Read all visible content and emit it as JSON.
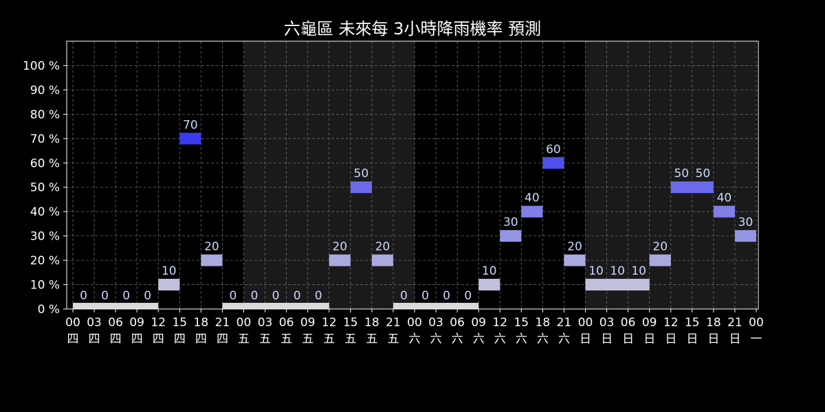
{
  "chart_data": {
    "type": "bar",
    "title": "六龜區 未來每 3小時降雨機率 預測",
    "xlabel": "",
    "ylabel": "",
    "ylim": [
      0,
      110
    ],
    "y_ticks": [
      "0 %",
      "10 %",
      "20 %",
      "30 %",
      "40 %",
      "50 %",
      "60 %",
      "70 %",
      "80 %",
      "90 %",
      "100 %"
    ],
    "y_tick_values": [
      0,
      10,
      20,
      30,
      40,
      50,
      60,
      70,
      80,
      90,
      100
    ],
    "grid": true,
    "x_tick_hours": [
      "00",
      "03",
      "06",
      "09",
      "12",
      "15",
      "18",
      "21",
      "00",
      "03",
      "06",
      "09",
      "12",
      "15",
      "18",
      "21",
      "00",
      "03",
      "06",
      "09",
      "12",
      "15",
      "18",
      "21",
      "00",
      "03",
      "06",
      "09",
      "12",
      "15",
      "18",
      "21",
      "00"
    ],
    "x_tick_days": [
      "四",
      "四",
      "四",
      "四",
      "四",
      "四",
      "四",
      "四",
      "五",
      "五",
      "五",
      "五",
      "五",
      "五",
      "五",
      "五",
      "六",
      "六",
      "六",
      "六",
      "六",
      "六",
      "六",
      "六",
      "日",
      "日",
      "日",
      "日",
      "日",
      "日",
      "日",
      "日",
      "一"
    ],
    "values": [
      0,
      0,
      0,
      0,
      10,
      70,
      null,
      20,
      0,
      0,
      0,
      0,
      0,
      20,
      50,
      null,
      20,
      0,
      0,
      0,
      0,
      10,
      30,
      40,
      60,
      20,
      10,
      10,
      10,
      20,
      50,
      50,
      40,
      30
    ],
    "bars": [
      {
        "start": 0,
        "end": 4,
        "value": 0,
        "label": "0"
      },
      {
        "start": 4,
        "end": 5,
        "value": 10,
        "label": "10"
      },
      {
        "start": 5,
        "end": 6,
        "value": 70,
        "label": "70"
      },
      {
        "start": 6,
        "end": 7,
        "value": 20,
        "label": "20"
      },
      {
        "start": 7,
        "end": 12,
        "value": 0,
        "label": "0"
      },
      {
        "start": 12,
        "end": 13,
        "value": 20,
        "label": "20"
      },
      {
        "start": 13,
        "end": 14,
        "value": 50,
        "label": "50"
      },
      {
        "start": 14,
        "end": 15,
        "value": 20,
        "label": "20"
      },
      {
        "start": 15,
        "end": 19,
        "value": 0,
        "label": "0"
      },
      {
        "start": 19,
        "end": 20,
        "value": 10,
        "label": "10"
      },
      {
        "start": 20,
        "end": 21,
        "value": 30,
        "label": "30"
      },
      {
        "start": 21,
        "end": 22,
        "value": 40,
        "label": "40"
      },
      {
        "start": 22,
        "end": 23,
        "value": 60,
        "label": "60"
      },
      {
        "start": 23,
        "end": 24,
        "value": 20,
        "label": "20"
      },
      {
        "start": 24,
        "end": 27,
        "value": 10,
        "label": "10"
      },
      {
        "start": 27,
        "end": 28,
        "value": 20,
        "label": "20"
      },
      {
        "start": 28,
        "end": 30,
        "value": 50,
        "label": "50"
      },
      {
        "start": 30,
        "end": 31,
        "value": 40,
        "label": "40"
      },
      {
        "start": 31,
        "end": 32,
        "value": 30,
        "label": "30"
      }
    ],
    "point_labels": [
      {
        "pos": 0.5,
        "value": 0,
        "label": "0"
      },
      {
        "pos": 1.5,
        "value": 0,
        "label": "0"
      },
      {
        "pos": 2.5,
        "value": 0,
        "label": "0"
      },
      {
        "pos": 3.5,
        "value": 0,
        "label": "0"
      },
      {
        "pos": 4.5,
        "value": 10,
        "label": "10"
      },
      {
        "pos": 5.5,
        "value": 70,
        "label": "70"
      },
      {
        "pos": 6.5,
        "value": 20,
        "label": "20"
      },
      {
        "pos": 7.5,
        "value": 0,
        "label": "0"
      },
      {
        "pos": 8.5,
        "value": 0,
        "label": "0"
      },
      {
        "pos": 9.5,
        "value": 0,
        "label": "0"
      },
      {
        "pos": 10.5,
        "value": 0,
        "label": "0"
      },
      {
        "pos": 11.5,
        "value": 0,
        "label": "0"
      },
      {
        "pos": 12.5,
        "value": 20,
        "label": "20"
      },
      {
        "pos": 13.5,
        "value": 50,
        "label": "50"
      },
      {
        "pos": 14.5,
        "value": 20,
        "label": "20"
      },
      {
        "pos": 15.5,
        "value": 0,
        "label": "0"
      },
      {
        "pos": 16.5,
        "value": 0,
        "label": "0"
      },
      {
        "pos": 17.5,
        "value": 0,
        "label": "0"
      },
      {
        "pos": 18.5,
        "value": 0,
        "label": "0"
      },
      {
        "pos": 19.5,
        "value": 10,
        "label": "10"
      },
      {
        "pos": 20.5,
        "value": 30,
        "label": "30"
      },
      {
        "pos": 21.5,
        "value": 40,
        "label": "40"
      },
      {
        "pos": 22.5,
        "value": 60,
        "label": "60"
      },
      {
        "pos": 23.5,
        "value": 20,
        "label": "20"
      },
      {
        "pos": 24.5,
        "value": 10,
        "label": "10"
      },
      {
        "pos": 25.5,
        "value": 10,
        "label": "10"
      },
      {
        "pos": 26.5,
        "value": 10,
        "label": "10"
      },
      {
        "pos": 27.5,
        "value": 20,
        "label": "20"
      },
      {
        "pos": 28.5,
        "value": 50,
        "label": "50"
      },
      {
        "pos": 29.5,
        "value": 50,
        "label": "50"
      },
      {
        "pos": 30.5,
        "value": 40,
        "label": "40"
      },
      {
        "pos": 31.5,
        "value": 30,
        "label": "30"
      }
    ],
    "shaded_days": [
      [
        8,
        16
      ],
      [
        24,
        32
      ]
    ],
    "colors": {
      "background": "#000000",
      "plot_background": "#000000",
      "shaded_band": "#1a1a1a",
      "grid": "#6a6a6a",
      "text": "#ffffff",
      "data_label": "#c8d8ff",
      "level_0": "#d9d9d9",
      "level_10": "#c0c0dc",
      "level_20": "#aaaadf",
      "level_30": "#9595e3",
      "level_40": "#7f7fe6",
      "level_50": "#6a6aea",
      "level_60": "#4f4fee",
      "level_70": "#3a3af2"
    }
  }
}
